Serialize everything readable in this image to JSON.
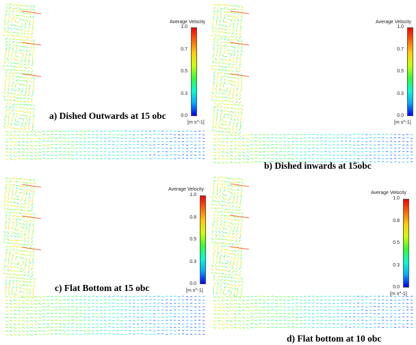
{
  "panels": [
    {
      "caption": "a) Dished Outwards at 15 obc",
      "legend_title": "Average Velocity",
      "ticks": [
        "1.0",
        "0.7",
        "0.5",
        "0.3",
        "0.0"
      ],
      "unit": "[m s^-1]"
    },
    {
      "caption": "b) Dished inwards at 15obc",
      "legend_title": "Average Velocity",
      "ticks": [
        "1.0",
        "0.7",
        "0.5",
        "0.3",
        "0.0"
      ],
      "unit": "[m s^-1]"
    },
    {
      "caption": "c) Flat Bottom at 15 obc",
      "legend_title": "Average Velocity",
      "ticks": [
        "1.0",
        "0.8",
        "0.5",
        "0.3",
        "0.0"
      ],
      "unit": "[m s^-1]"
    },
    {
      "caption": "d) Flat bottom at 10 obc",
      "legend_title": "Average Velocity",
      "ticks": [
        "1.0",
        "0.8",
        "0.5",
        "0.3",
        "0.0"
      ],
      "unit": "[m s^-1]"
    }
  ],
  "colormap": [
    "#0000ff",
    "#00aaff",
    "#00ffcc",
    "#33ff33",
    "#ccff00",
    "#ffcc00",
    "#ff6600",
    "#ff0000"
  ]
}
